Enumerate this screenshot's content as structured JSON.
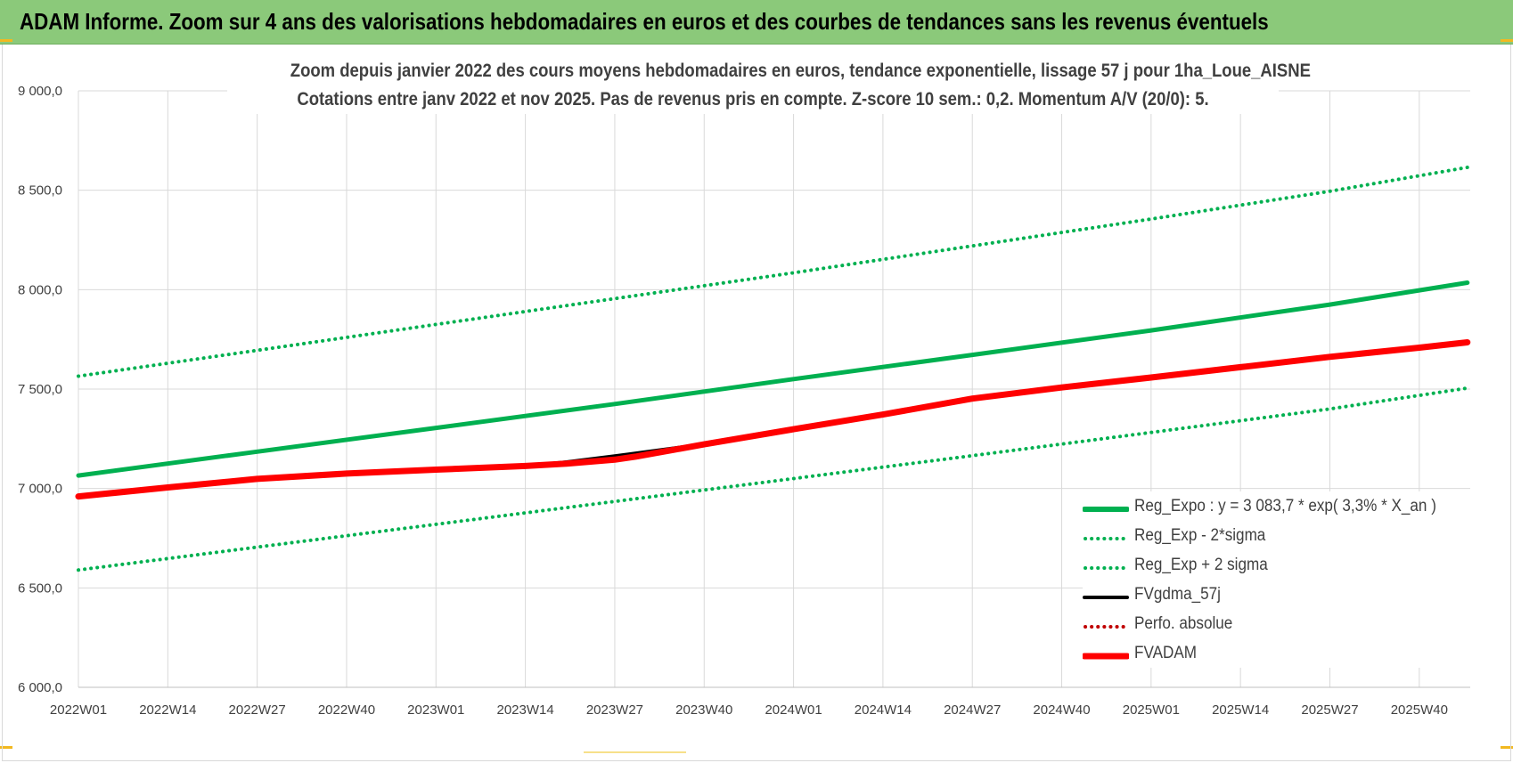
{
  "banner": {
    "title": "ADAM Informe. Zoom sur 4 ans des valorisations hebdomadaires en euros et des courbes de tendances sans les revenus éventuels"
  },
  "colors": {
    "banner": "#8bc97a",
    "trend": "#00b050",
    "fv": "#ff0000",
    "fvgdma": "#000000",
    "accent": "#f2b820"
  },
  "chart_data": {
    "type": "line",
    "title": "Zoom depuis janvier 2022 des cours moyens hebdomadaires en euros, tendance exponentielle, lissage 57 j pour 1ha_Loue_AISNE",
    "subtitle": "Cotations entre janv 2022 et nov 2025. Pas de revenus pris en compte. Z-score 10 sem.: 0,2. Momentum A/V (20/0): 5.",
    "xlabel": "",
    "ylabel": "",
    "x_ticks": [
      "2022W01",
      "2022W14",
      "2022W27",
      "2022W40",
      "2023W01",
      "2023W14",
      "2023W27",
      "2023W40",
      "2024W01",
      "2024W14",
      "2024W27",
      "2024W40",
      "2025W01",
      "2025W14",
      "2025W27",
      "2025W40"
    ],
    "y_ticks": [
      "6 000,0",
      "6 500,0",
      "7 000,0",
      "7 500,0",
      "8 000,0",
      "8 500,0",
      "9 000,0"
    ],
    "ylim": [
      6000,
      9000
    ],
    "grid": true,
    "legend_position": "bottom-right",
    "series": [
      {
        "name": "Reg_Expo : y = 3 083,7 * exp( 3,3% *  X_an )",
        "color": "#00b050",
        "style": "solid",
        "points": [
          [
            "2022W01",
            7065
          ],
          [
            "2022W27",
            7185
          ],
          [
            "2023W01",
            7305
          ],
          [
            "2023W27",
            7425
          ],
          [
            "2024W01",
            7550
          ],
          [
            "2024W27",
            7672
          ],
          [
            "2025W01",
            7795
          ],
          [
            "2025W27",
            7925
          ],
          [
            "2025W47",
            8035
          ]
        ]
      },
      {
        "name": "Reg_Exp - 2*sigma",
        "color": "#00b050",
        "style": "dotted",
        "points": [
          [
            "2022W01",
            6590
          ],
          [
            "2022W27",
            6705
          ],
          [
            "2023W01",
            6820
          ],
          [
            "2023W27",
            6935
          ],
          [
            "2024W01",
            7050
          ],
          [
            "2024W27",
            7165
          ],
          [
            "2025W01",
            7282
          ],
          [
            "2025W27",
            7400
          ],
          [
            "2025W47",
            7505
          ]
        ]
      },
      {
        "name": "Reg_Exp + 2 sigma",
        "color": "#00b050",
        "style": "dotted",
        "points": [
          [
            "2022W01",
            7565
          ],
          [
            "2022W27",
            7695
          ],
          [
            "2023W01",
            7825
          ],
          [
            "2023W27",
            7955
          ],
          [
            "2024W01",
            8085
          ],
          [
            "2024W27",
            8220
          ],
          [
            "2025W01",
            8355
          ],
          [
            "2025W27",
            8495
          ],
          [
            "2025W47",
            8615
          ]
        ]
      },
      {
        "name": "FVgdma_57j",
        "color": "#000000",
        "style": "solid",
        "points": [
          [
            "2022W01",
            6965
          ],
          [
            "2022W14",
            7005
          ],
          [
            "2022W27",
            7048
          ],
          [
            "2022W40",
            7075
          ],
          [
            "2023W01",
            7095
          ],
          [
            "2023W14",
            7115
          ],
          [
            "2023W20",
            7135
          ],
          [
            "2023W27",
            7165
          ],
          [
            "2023W40",
            7225
          ],
          [
            "2024W01",
            7300
          ],
          [
            "2024W14",
            7375
          ],
          [
            "2024W27",
            7455
          ],
          [
            "2024W40",
            7510
          ],
          [
            "2025W01",
            7560
          ],
          [
            "2025W14",
            7610
          ],
          [
            "2025W27",
            7660
          ],
          [
            "2025W40",
            7705
          ],
          [
            "2025W47",
            7728
          ]
        ]
      },
      {
        "name": "Perfo. absolue",
        "color": "#c00000",
        "style": "dotted",
        "points": []
      },
      {
        "name": "FVADAM",
        "color": "#ff0000",
        "style": "solid",
        "points": [
          [
            "2022W01",
            6960
          ],
          [
            "2022W14",
            7005
          ],
          [
            "2022W27",
            7048
          ],
          [
            "2022W40",
            7075
          ],
          [
            "2023W01",
            7095
          ],
          [
            "2023W14",
            7113
          ],
          [
            "2023W20",
            7125
          ],
          [
            "2023W27",
            7145
          ],
          [
            "2023W30",
            7160
          ],
          [
            "2023W40",
            7222
          ],
          [
            "2024W01",
            7298
          ],
          [
            "2024W14",
            7372
          ],
          [
            "2024W27",
            7452
          ],
          [
            "2024W40",
            7508
          ],
          [
            "2025W01",
            7558
          ],
          [
            "2025W14",
            7610
          ],
          [
            "2025W27",
            7662
          ],
          [
            "2025W40",
            7708
          ],
          [
            "2025W47",
            7735
          ]
        ]
      }
    ]
  }
}
